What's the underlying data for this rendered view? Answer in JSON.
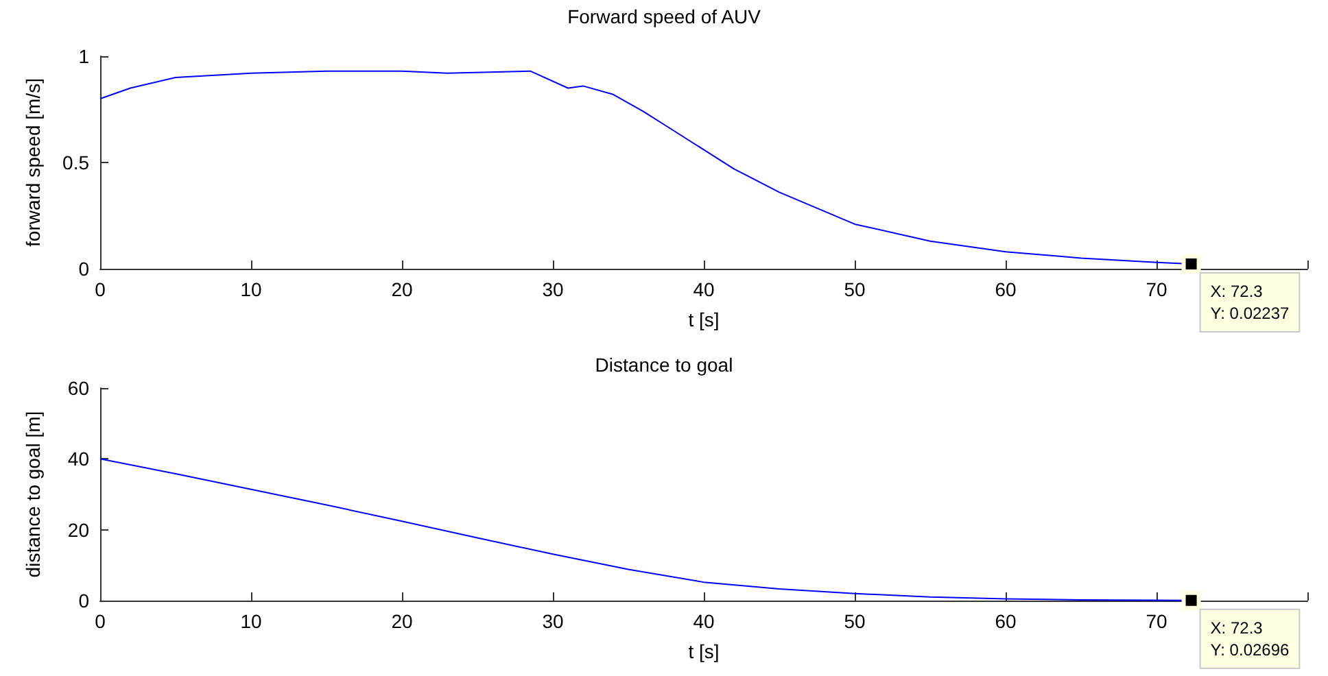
{
  "chart_data": [
    {
      "type": "line",
      "title": "Forward speed of AUV",
      "xlabel": "t [s]",
      "ylabel": "forward speed [m/s]",
      "x": [
        0,
        2,
        5,
        10,
        15,
        20,
        23,
        28.5,
        31,
        32,
        34,
        36,
        38,
        40,
        42,
        45,
        50,
        55,
        60,
        65,
        70,
        72.3
      ],
      "series": [
        {
          "color": "#0000ff",
          "values": [
            0.8,
            0.85,
            0.9,
            0.92,
            0.93,
            0.93,
            0.92,
            0.93,
            0.85,
            0.86,
            0.82,
            0.74,
            0.65,
            0.56,
            0.47,
            0.36,
            0.21,
            0.13,
            0.08,
            0.05,
            0.03,
            0.02237
          ]
        }
      ],
      "xlim": [
        0,
        80
      ],
      "xticks": [
        0,
        10,
        20,
        30,
        40,
        50,
        60,
        70,
        {
          "value": 80,
          "label": null
        }
      ],
      "ylim": [
        0,
        1
      ],
      "yticks": [
        0,
        0.5,
        1
      ],
      "annotations": [
        {
          "text": "X: 72.3\nY: 0.02237",
          "x": 72.3,
          "y": 0.02237
        }
      ]
    },
    {
      "type": "line",
      "title": "Distance to goal",
      "xlabel": "t [s]",
      "ylabel": "distance to goal [m]",
      "x": [
        0,
        5,
        10,
        15,
        20,
        25,
        30,
        35,
        40,
        45,
        50,
        55,
        60,
        65,
        70,
        72.3
      ],
      "series": [
        {
          "color": "#0000ff",
          "values": [
            40,
            35.8,
            31.4,
            27,
            22.4,
            17.7,
            13.1,
            8.8,
            5.2,
            3.3,
            2,
            1,
            0.5,
            0.2,
            0.1,
            0.02696
          ]
        }
      ],
      "xlim": [
        0,
        80
      ],
      "xticks": [
        0,
        10,
        20,
        30,
        40,
        50,
        60,
        70,
        {
          "value": 80,
          "label": null
        }
      ],
      "ylim": [
        0,
        60
      ],
      "yticks": [
        0,
        20,
        40,
        60
      ],
      "annotations": [
        {
          "text": "X: 72.3\nY: 0.02696",
          "x": 72.3,
          "y": 0.02696
        }
      ]
    }
  ]
}
